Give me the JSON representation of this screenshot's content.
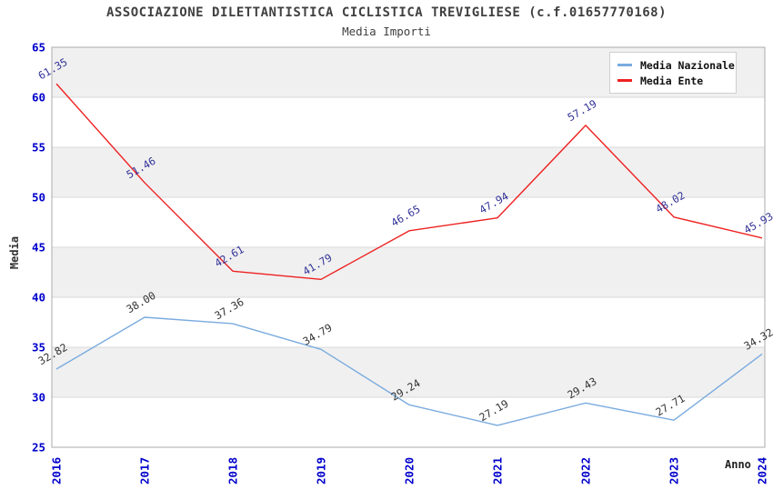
{
  "header": {
    "title": "ASSOCIAZIONE DILETTANTISTICA CICLISTICA TREVIGLIESE (c.f.01657770168)",
    "subtitle": "Media Importi"
  },
  "axes": {
    "y_title": "Media",
    "x_title": "Anno",
    "y_ticks": [
      25,
      30,
      35,
      40,
      45,
      50,
      55,
      60,
      65
    ],
    "x_ticks": [
      "2016",
      "2017",
      "2018",
      "2019",
      "2020",
      "2021",
      "2022",
      "2023",
      "2024"
    ]
  },
  "legend": {
    "position": "top-right",
    "items": [
      {
        "label": "Media Nazionale"
      },
      {
        "label": "Media Ente"
      }
    ]
  },
  "chart_data": {
    "type": "line",
    "title": "ASSOCIAZIONE DILETTANTISTICA CICLISTICA TREVIGLIESE (c.f.01657770168)",
    "subtitle": "Media Importi",
    "xlabel": "Anno",
    "ylabel": "Media",
    "x": [
      "2016",
      "2017",
      "2018",
      "2019",
      "2020",
      "2021",
      "2022",
      "2023",
      "2024"
    ],
    "series": [
      {
        "name": "Media Nazionale",
        "color": "#7aabdf",
        "label_color": "#333333",
        "values": [
          32.82,
          38.0,
          37.36,
          34.79,
          29.24,
          27.19,
          29.43,
          27.71,
          34.32
        ]
      },
      {
        "name": "Media Ente",
        "color": "#ee2222",
        "label_color": "#333399",
        "values": [
          61.35,
          51.46,
          42.61,
          41.79,
          46.65,
          47.94,
          57.19,
          48.02,
          45.93
        ]
      }
    ],
    "ylim": [
      25,
      65
    ],
    "ytick_step": 5,
    "grid": "horizontal-bands-alternating",
    "legend_position": "top-right"
  },
  "colors": {
    "title_text": "#404040",
    "tick_label": "#0000cc",
    "band_gray": "#f0f0f0",
    "band_white": "#ffffff",
    "grid_line": "#d9d9d9",
    "plot_border": "#ababab",
    "nazionale_line": "#7aabdf",
    "ente_line": "#ee2222",
    "nazionale_point_label": "#333333",
    "ente_point_label": "#333399"
  }
}
